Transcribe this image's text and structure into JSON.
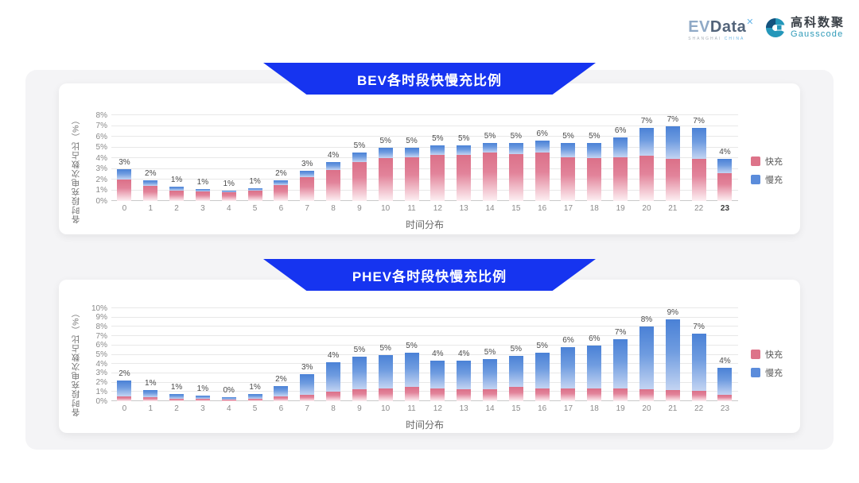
{
  "header": {
    "evdata": {
      "ev": "EV",
      "data_word": "Data",
      "spark": "✕",
      "subtitle_left": "SHANGHAI",
      "subtitle_right": "CHINA"
    },
    "gausscode": {
      "name_cn": "高科数聚",
      "name_en": "Gausscode"
    }
  },
  "colors": {
    "banner_blue": "#1634f0",
    "fast": "#dd7389",
    "slow": "#5b8cdb"
  },
  "chart_data": [
    {
      "type": "bar",
      "stacked": true,
      "title": "BEV各时段快慢充比例",
      "xlabel": "时间分布",
      "ylabel": "各时段充电次数占比（%）",
      "ylim": [
        0,
        8
      ],
      "ytick_step": 1,
      "ytick_suffix": "%",
      "grid": true,
      "legend_position": "right",
      "categories": [
        "0",
        "1",
        "2",
        "3",
        "4",
        "5",
        "6",
        "7",
        "8",
        "9",
        "10",
        "11",
        "12",
        "13",
        "14",
        "15",
        "16",
        "17",
        "18",
        "19",
        "20",
        "21",
        "22",
        "23"
      ],
      "series": [
        {
          "name": "快充",
          "color": "#dd7389",
          "values": [
            2.0,
            1.4,
            1.0,
            0.9,
            0.85,
            1.0,
            1.5,
            2.2,
            2.9,
            3.6,
            4.0,
            4.1,
            4.3,
            4.3,
            4.5,
            4.4,
            4.5,
            4.1,
            4.0,
            4.1,
            4.2,
            4.1,
            3.9,
            2.6
          ]
        },
        {
          "name": "慢充",
          "color": "#5b8cdb",
          "values": [
            1.0,
            0.5,
            0.3,
            0.2,
            0.15,
            0.2,
            0.4,
            0.6,
            0.7,
            0.9,
            1.0,
            0.9,
            0.9,
            0.9,
            0.9,
            1.0,
            1.1,
            1.3,
            1.4,
            1.8,
            2.6,
            3.2,
            2.9,
            1.3
          ]
        }
      ],
      "total_labels": [
        "3%",
        "2%",
        "1%",
        "1%",
        "1%",
        "1%",
        "2%",
        "3%",
        "4%",
        "5%",
        "5%",
        "5%",
        "5%",
        "5%",
        "5%",
        "5%",
        "6%",
        "5%",
        "5%",
        "6%",
        "7%",
        "7%",
        "7%",
        "4%"
      ],
      "emphasized_xticks": [
        "23"
      ]
    },
    {
      "type": "bar",
      "stacked": true,
      "title": "PHEV各时段快慢充比例",
      "xlabel": "时间分布",
      "ylabel": "各时段充电次数占比（%）",
      "ylim": [
        0,
        10
      ],
      "ytick_step": 1,
      "ytick_suffix": "%",
      "grid": true,
      "legend_position": "right",
      "categories": [
        "0",
        "1",
        "2",
        "3",
        "4",
        "5",
        "6",
        "7",
        "8",
        "9",
        "10",
        "11",
        "12",
        "13",
        "14",
        "15",
        "16",
        "17",
        "18",
        "19",
        "20",
        "21",
        "22",
        "23"
      ],
      "series": [
        {
          "name": "快充",
          "color": "#dd7389",
          "values": [
            0.5,
            0.4,
            0.3,
            0.25,
            0.2,
            0.3,
            0.5,
            0.7,
            1.0,
            1.3,
            1.4,
            1.5,
            1.4,
            1.3,
            1.3,
            1.5,
            1.4,
            1.4,
            1.4,
            1.4,
            1.3,
            1.2,
            1.1,
            0.7
          ]
        },
        {
          "name": "慢充",
          "color": "#5b8cdb",
          "values": [
            1.7,
            0.8,
            0.5,
            0.35,
            0.25,
            0.5,
            1.1,
            2.2,
            3.2,
            3.5,
            3.6,
            3.7,
            3.0,
            3.1,
            3.2,
            3.4,
            3.8,
            4.4,
            4.6,
            5.3,
            6.7,
            7.9,
            6.2,
            2.9
          ]
        }
      ],
      "total_labels": [
        "2%",
        "1%",
        "1%",
        "1%",
        "0%",
        "1%",
        "2%",
        "3%",
        "4%",
        "5%",
        "5%",
        "5%",
        "4%",
        "4%",
        "5%",
        "5%",
        "5%",
        "6%",
        "6%",
        "7%",
        "8%",
        "9%",
        "7%",
        "4%"
      ],
      "emphasized_xticks": []
    }
  ]
}
